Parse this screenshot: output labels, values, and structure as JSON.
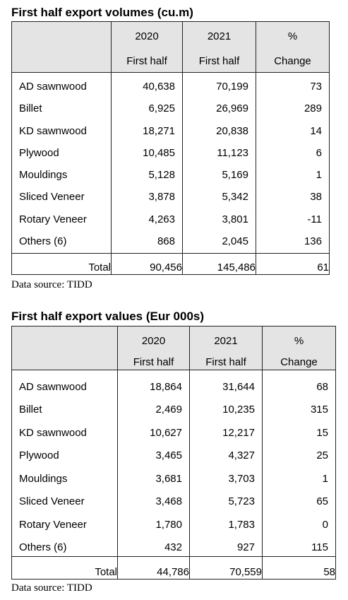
{
  "tables": [
    {
      "title": "First half export volumes (cu.m)",
      "headers": [
        {
          "year": "2020",
          "sub": "First half"
        },
        {
          "year": "2021",
          "sub": "First half"
        },
        {
          "year": "%",
          "sub": "Change"
        }
      ],
      "rows": [
        {
          "label": "AD sawnwood",
          "v2020": "40,638",
          "v2021": "70,199",
          "change": "73"
        },
        {
          "label": "Billet",
          "v2020": "6,925",
          "v2021": "26,969",
          "change": "289"
        },
        {
          "label": "KD sawnwood",
          "v2020": "18,271",
          "v2021": "20,838",
          "change": "14"
        },
        {
          "label": "Plywood",
          "v2020": "10,485",
          "v2021": "11,123",
          "change": "6"
        },
        {
          "label": "Mouldings",
          "v2020": "5,128",
          "v2021": "5,169",
          "change": "1"
        },
        {
          "label": "Sliced Veneer",
          "v2020": "3,878",
          "v2021": "5,342",
          "change": "38"
        },
        {
          "label": "Rotary Veneer",
          "v2020": "4,263",
          "v2021": "3,801",
          "change": "-11"
        },
        {
          "label": "Others (6)",
          "v2020": "868",
          "v2021": "2,045",
          "change": "136"
        }
      ],
      "total": {
        "label": "Total",
        "v2020": "90,456",
        "v2021": "145,486",
        "change": "61"
      },
      "source": "Data source: TIDD"
    },
    {
      "title": "First half export values (Eur 000s)",
      "headers": [
        {
          "year": "2020",
          "sub": "First half"
        },
        {
          "year": "2021",
          "sub": "First half"
        },
        {
          "year": "%",
          "sub": "Change"
        }
      ],
      "rows": [
        {
          "label": "AD sawnwood",
          "v2020": "18,864",
          "v2021": "31,644",
          "change": "68"
        },
        {
          "label": "Billet",
          "v2020": "2,469",
          "v2021": "10,235",
          "change": "315"
        },
        {
          "label": "KD sawnwood",
          "v2020": "10,627",
          "v2021": "12,217",
          "change": "15"
        },
        {
          "label": "Plywood",
          "v2020": "3,465",
          "v2021": "4,327",
          "change": "25"
        },
        {
          "label": "Mouldings",
          "v2020": "3,681",
          "v2021": "3,703",
          "change": "1"
        },
        {
          "label": "Sliced Veneer",
          "v2020": "3,468",
          "v2021": "5,723",
          "change": "65"
        },
        {
          "label": "Rotary Veneer",
          "v2020": "1,780",
          "v2021": "1,783",
          "change": "0"
        },
        {
          "label": "Others (6)",
          "v2020": "432",
          "v2021": "927",
          "change": "115"
        }
      ],
      "total": {
        "label": "Total",
        "v2020": "44,786",
        "v2021": "70,559",
        "change": "58"
      },
      "source": "Data source: TIDD"
    }
  ]
}
